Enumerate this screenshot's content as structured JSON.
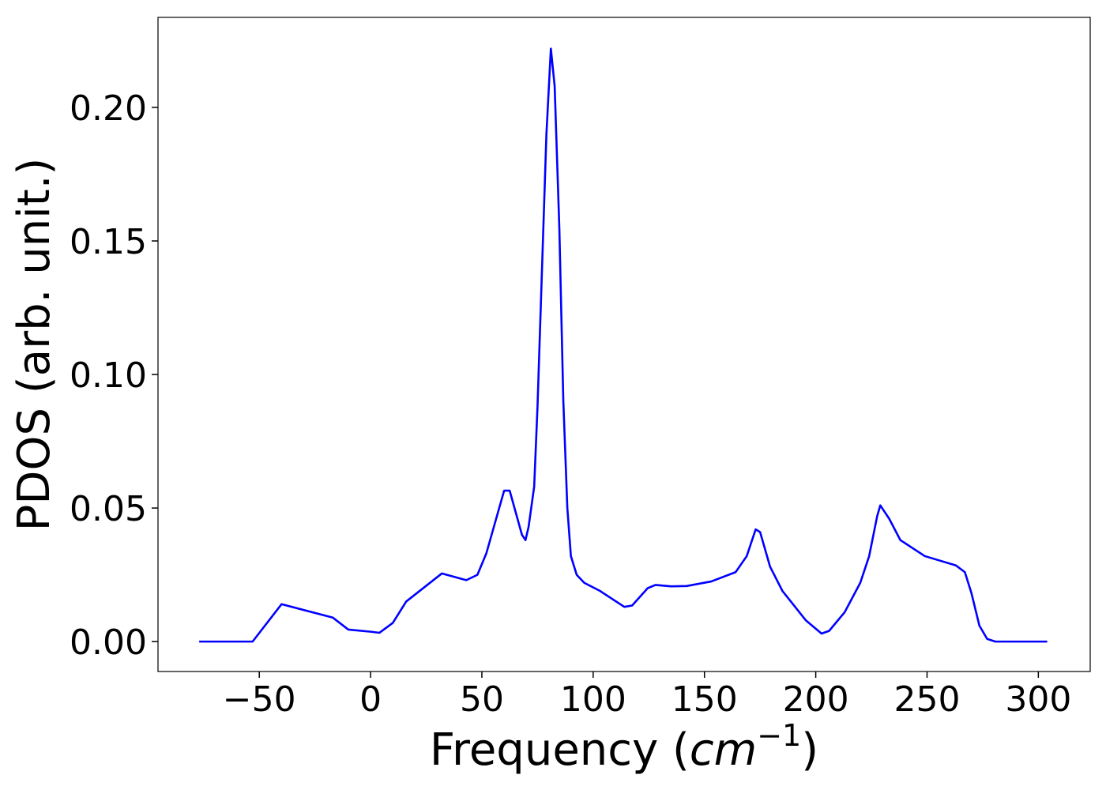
{
  "chart_data": {
    "type": "line",
    "xlabel": {
      "prefix": "Frequency (",
      "unit": "cm",
      "exponent": "−1",
      "suffix": ")"
    },
    "ylabel": "PDOS (arb. unit.)",
    "xlim": [
      -95.5,
      323.3
    ],
    "ylim": [
      -0.0112,
      0.2337
    ],
    "xticks": [
      {
        "value": -50,
        "label": "−50"
      },
      0,
      50,
      100,
      150,
      200,
      250,
      300
    ],
    "yticks": [
      {
        "value": 0,
        "label": "0.00"
      },
      {
        "value": 0.05,
        "label": "0.05"
      },
      {
        "value": 0.1,
        "label": "0.10"
      },
      {
        "value": 0.15,
        "label": "0.15"
      },
      {
        "value": 0.2,
        "label": "0.20"
      }
    ],
    "grid": false,
    "series": [
      {
        "name": "PDOS",
        "color": "#0000ff",
        "x": [
          -77,
          -53,
          -40,
          -17,
          -10,
          0,
          4,
          10,
          16,
          32,
          43,
          48,
          52,
          60,
          62.5,
          68,
          69.6,
          71,
          73.5,
          75,
          79,
          81,
          82.7,
          84.8,
          86.6,
          88.4,
          90,
          92.6,
          96,
          103,
          114,
          117.5,
          124.5,
          128,
          135,
          142,
          153,
          164,
          169,
          173,
          175,
          179.5,
          185,
          195.5,
          202.6,
          206,
          213,
          220,
          224,
          227.6,
          229,
          233,
          238,
          249,
          263,
          267,
          270,
          273.5,
          277,
          280.7,
          304
        ],
        "values": [
          0,
          0,
          0.014,
          0.009,
          0.0045,
          0.0037,
          0.0033,
          0.007,
          0.015,
          0.0255,
          0.023,
          0.025,
          0.033,
          0.0565,
          0.0565,
          0.04,
          0.038,
          0.043,
          0.058,
          0.088,
          0.19,
          0.222,
          0.208,
          0.155,
          0.09,
          0.05,
          0.032,
          0.025,
          0.022,
          0.019,
          0.013,
          0.0135,
          0.02,
          0.0212,
          0.0207,
          0.0208,
          0.0225,
          0.026,
          0.032,
          0.042,
          0.041,
          0.028,
          0.019,
          0.008,
          0.003,
          0.004,
          0.011,
          0.022,
          0.032,
          0.047,
          0.051,
          0.046,
          0.038,
          0.032,
          0.0285,
          0.026,
          0.018,
          0.006,
          0.001,
          0,
          0
        ]
      }
    ]
  }
}
